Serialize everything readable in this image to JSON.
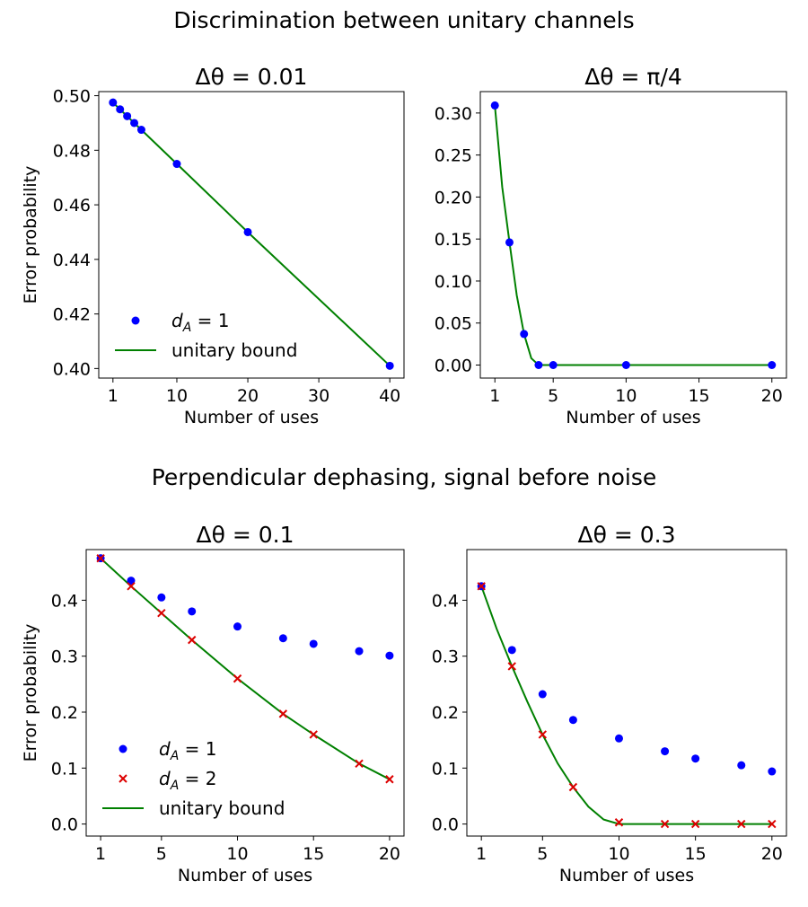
{
  "figure": {
    "top_title": "Discrimination between unitary channels",
    "bottom_title": "Perpendicular dephasing, signal before noise"
  },
  "colors": {
    "d1": "#0000ff",
    "d2": "#dd0000",
    "bound": "#008000"
  },
  "chart_data": [
    {
      "type": "scatter",
      "title": "Δθ = 0.01",
      "xlabel": "Number of uses",
      "ylabel": "Error probability",
      "xlim": [
        -1,
        42
      ],
      "ylim": [
        0.3965,
        0.5015
      ],
      "xticks": [
        1,
        10,
        20,
        30,
        40
      ],
      "yticks": [
        0.4,
        0.42,
        0.44,
        0.46,
        0.48,
        0.5
      ],
      "ytick_labels": [
        "0.40",
        "0.42",
        "0.44",
        "0.46",
        "0.48",
        "0.50"
      ],
      "legend_position": "lower-left",
      "series": [
        {
          "name": "d_A = 1",
          "sub": "A",
          "num": "1",
          "marker": "circle",
          "color": "#0000ff",
          "x": [
            1,
            2,
            3,
            4,
            5,
            10,
            20,
            40
          ],
          "y": [
            0.4975,
            0.495,
            0.4925,
            0.49,
            0.4875,
            0.475,
            0.45,
            0.401
          ]
        },
        {
          "name": "unitary bound",
          "marker": "line",
          "color": "#008000",
          "x": [
            1,
            5,
            10,
            20,
            40
          ],
          "y": [
            0.4975,
            0.4875,
            0.475,
            0.45,
            0.401
          ]
        }
      ]
    },
    {
      "type": "scatter",
      "title": "Δθ = π/4",
      "xlabel": "Number of uses",
      "ylabel": "",
      "xlim": [
        0,
        21
      ],
      "ylim": [
        -0.0155,
        0.3255
      ],
      "xticks": [
        1,
        5,
        10,
        15,
        20
      ],
      "yticks": [
        0.0,
        0.05,
        0.1,
        0.15,
        0.2,
        0.25,
        0.3
      ],
      "ytick_labels": [
        "0.00",
        "0.05",
        "0.10",
        "0.15",
        "0.20",
        "0.25",
        "0.30"
      ],
      "series": [
        {
          "name": "d_A = 1",
          "marker": "circle",
          "color": "#0000ff",
          "x": [
            1,
            2,
            3,
            4,
            5,
            10,
            20
          ],
          "y": [
            0.309,
            0.146,
            0.037,
            0.0,
            0.0,
            0.0,
            0.0
          ]
        },
        {
          "name": "unitary bound",
          "marker": "line",
          "color": "#008000",
          "x": [
            1,
            1.5,
            2,
            2.5,
            3,
            3.5,
            4,
            20
          ],
          "y": [
            0.309,
            0.212,
            0.146,
            0.083,
            0.037,
            0.008,
            0.0,
            0.0
          ]
        }
      ]
    },
    {
      "type": "scatter",
      "title": "Δθ = 0.1",
      "xlabel": "Number of uses",
      "ylabel": "Error probability",
      "xlim": [
        0.05,
        20.95
      ],
      "ylim": [
        -0.0215,
        0.4905
      ],
      "xticks": [
        1,
        5,
        10,
        15,
        20
      ],
      "yticks": [
        0.0,
        0.1,
        0.2,
        0.3,
        0.4
      ],
      "ytick_labels": [
        "0.0",
        "0.1",
        "0.2",
        "0.3",
        "0.4"
      ],
      "legend_position": "lower-left",
      "series": [
        {
          "name": "d_A = 1",
          "sub": "A",
          "num": "1",
          "marker": "circle",
          "color": "#0000ff",
          "x": [
            1,
            3,
            5,
            7,
            10,
            13,
            15,
            18,
            20
          ],
          "y": [
            0.475,
            0.435,
            0.405,
            0.38,
            0.353,
            0.332,
            0.322,
            0.309,
            0.301
          ]
        },
        {
          "name": "d_A = 2",
          "sub": "A",
          "num": "2",
          "marker": "x",
          "color": "#dd0000",
          "x": [
            1,
            3,
            5,
            7,
            10,
            13,
            15,
            18,
            20
          ],
          "y": [
            0.475,
            0.425,
            0.377,
            0.329,
            0.26,
            0.197,
            0.16,
            0.108,
            0.08
          ]
        },
        {
          "name": "unitary bound",
          "marker": "line",
          "color": "#008000",
          "x": [
            1,
            3,
            5,
            7,
            10,
            13,
            15,
            18,
            20
          ],
          "y": [
            0.475,
            0.425,
            0.377,
            0.329,
            0.26,
            0.197,
            0.16,
            0.108,
            0.08
          ]
        }
      ]
    },
    {
      "type": "scatter",
      "title": "Δθ = 0.3",
      "xlabel": "Number of uses",
      "ylabel": "",
      "xlim": [
        0.05,
        20.95
      ],
      "ylim": [
        -0.0215,
        0.4905
      ],
      "xticks": [
        1,
        5,
        10,
        15,
        20
      ],
      "yticks": [
        0.0,
        0.1,
        0.2,
        0.3,
        0.4
      ],
      "ytick_labels": [
        "0.0",
        "0.1",
        "0.2",
        "0.3",
        "0.4"
      ],
      "series": [
        {
          "name": "d_A = 1",
          "marker": "circle",
          "color": "#0000ff",
          "x": [
            1,
            3,
            5,
            7,
            10,
            13,
            15,
            18,
            20
          ],
          "y": [
            0.425,
            0.311,
            0.232,
            0.186,
            0.153,
            0.13,
            0.117,
            0.105,
            0.094
          ]
        },
        {
          "name": "d_A = 2",
          "marker": "x",
          "color": "#dd0000",
          "x": [
            1,
            3,
            5,
            7,
            10,
            13,
            15,
            18,
            20
          ],
          "y": [
            0.425,
            0.282,
            0.16,
            0.066,
            0.003,
            0.0,
            0.0,
            0.0,
            0.0
          ]
        },
        {
          "name": "unitary bound",
          "marker": "line",
          "color": "#008000",
          "x": [
            1,
            2,
            3,
            4,
            5,
            6,
            7,
            8,
            9,
            10,
            20
          ],
          "y": [
            0.425,
            0.349,
            0.282,
            0.219,
            0.16,
            0.108,
            0.066,
            0.031,
            0.008,
            0.0,
            0.0
          ]
        }
      ]
    }
  ]
}
